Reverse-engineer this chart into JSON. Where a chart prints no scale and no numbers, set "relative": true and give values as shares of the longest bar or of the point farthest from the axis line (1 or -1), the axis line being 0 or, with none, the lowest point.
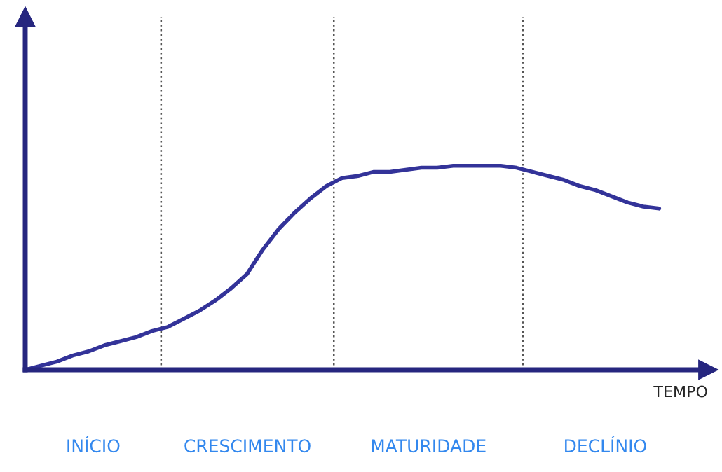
{
  "chart_data": {
    "type": "line",
    "relative": true,
    "xlabel": "TEMPO",
    "categories": [
      null,
      null,
      null,
      null,
      null,
      null,
      null,
      null,
      null,
      null,
      null,
      null,
      null,
      null,
      null,
      null,
      null,
      null,
      null,
      null,
      null,
      null,
      null,
      null,
      null,
      null,
      null,
      null,
      null,
      null,
      null,
      null,
      null,
      null,
      null,
      null,
      null,
      null,
      null,
      null,
      null
    ],
    "series": [
      {
        "color": "#333399",
        "values": [
          0,
          0.02,
          0.04,
          0.07,
          0.09,
          0.12,
          0.14,
          0.16,
          0.19,
          0.21,
          0.25,
          0.29,
          0.34,
          0.4,
          0.47,
          0.59,
          0.69,
          0.77,
          0.84,
          0.9,
          0.94,
          0.95,
          0.97,
          0.97,
          0.98,
          0.99,
          0.99,
          1,
          1,
          1,
          1,
          0.99,
          0.97,
          0.95,
          0.93,
          0.9,
          0.88,
          0.85,
          0.82,
          0.8,
          0.79
        ]
      }
    ],
    "annotations": [
      "INÍCIO",
      "CRESCIMENTO",
      "MATURIDADE",
      "DECLÍNIO"
    ],
    "line_style": "solid",
    "marker": "none"
  }
}
